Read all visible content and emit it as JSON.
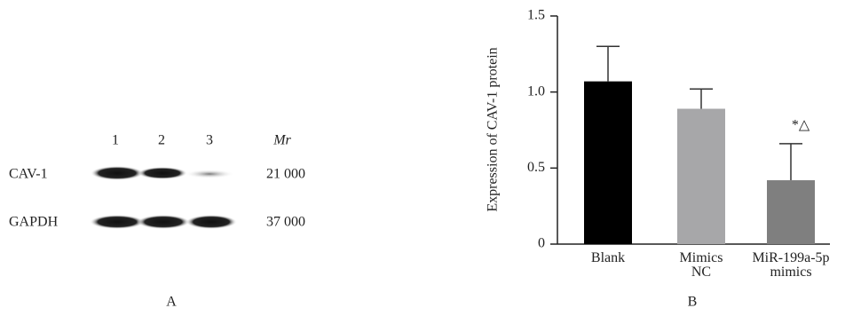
{
  "blot": {
    "lanes": [
      "1",
      "2",
      "3"
    ],
    "mr_header": "Mr",
    "rows": [
      {
        "label": "CAV-1",
        "mr": "21 000"
      },
      {
        "label": "GAPDH",
        "mr": "37 000"
      }
    ],
    "panel_label": "A"
  },
  "chart_data": {
    "type": "bar",
    "ylabel": "Expression of CAV-1 protein",
    "categories": [
      "Blank",
      "Mimics NC",
      "MiR-199a-5p mimics"
    ],
    "values": [
      1.07,
      0.89,
      0.42
    ],
    "errors": [
      0.23,
      0.13,
      0.24
    ],
    "colors": [
      "#000000",
      "#a7a7a9",
      "#7f7f7f"
    ],
    "ylim": [
      0,
      1.5
    ],
    "yticks": [
      0,
      0.5,
      {
        "value": 1.0,
        "label": "1.0"
      },
      {
        "value": 1.5,
        "label": "1.5"
      }
    ],
    "annotation": "*△",
    "panel_label": "B"
  }
}
